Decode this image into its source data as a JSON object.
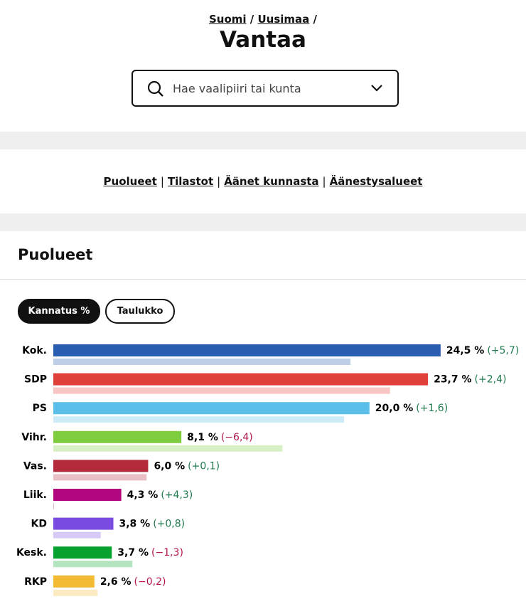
{
  "breadcrumb": [
    "Suomi",
    "Uusimaa"
  ],
  "breadcrumb_separator": "/",
  "title": "Vantaa",
  "search": {
    "placeholder": "Hae vaalipiiri tai kunta"
  },
  "nav": {
    "links": [
      "Puolueet",
      "Tilastot",
      "Äänet kunnasta",
      "Äänestysalueet"
    ],
    "separator": "|"
  },
  "section_title": "Puolueet",
  "tabs": [
    "Kannatus %",
    "Taulukko"
  ],
  "chart_data": {
    "type": "bar",
    "orientation": "horizontal",
    "categories": [
      "Kok.",
      "SDP",
      "PS",
      "Vihr.",
      "Vas.",
      "Liik.",
      "KD",
      "Kesk.",
      "RKP"
    ],
    "values": [
      24.5,
      23.7,
      20.0,
      8.1,
      6.0,
      4.3,
      3.8,
      3.7,
      2.6
    ],
    "value_labels": [
      "24,5 %",
      "23,7 %",
      "20,0 %",
      "8,1 %",
      "6,0 %",
      "4,3 %",
      "3,8 %",
      "3,7 %",
      "2,6 %"
    ],
    "changes": [
      5.7,
      2.4,
      1.6,
      -6.4,
      0.1,
      4.3,
      0.8,
      -1.3,
      -0.2
    ],
    "change_labels": [
      "(+5,7)",
      "(+2,4)",
      "(+1,6)",
      "(−6,4)",
      "(+0,1)",
      "(+4,3)",
      "(+0,8)",
      "(−1,3)",
      "(−0,2)"
    ],
    "colors": [
      "#2a5db0",
      "#e0403a",
      "#5bbfe9",
      "#7fcc3e",
      "#b32a3a",
      "#b0077e",
      "#7a4be0",
      "#07a12f",
      "#f2bb34"
    ],
    "change_colors": {
      "positive": "#1f7a4d",
      "negative": "#b3164b"
    }
  }
}
